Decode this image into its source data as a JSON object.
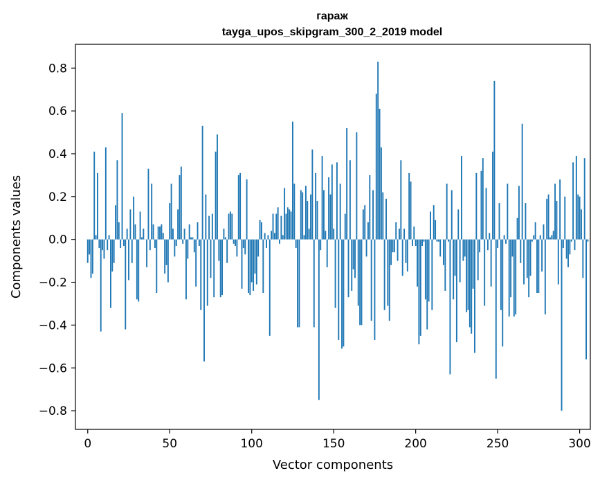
{
  "chart_data": {
    "type": "bar",
    "title": "гараж",
    "subtitle": "tayga_upos_skipgram_300_2_2019 model",
    "xlabel": "Vector components",
    "ylabel": "Components values",
    "xlim": [
      -7.5,
      306.5
    ],
    "ylim": [
      -0.887,
      0.911
    ],
    "xticks": [
      0,
      50,
      100,
      150,
      200,
      250,
      300
    ],
    "yticks": [
      -0.8,
      -0.6,
      -0.4,
      -0.2,
      0.0,
      0.2,
      0.4,
      0.6,
      0.8
    ],
    "ytick_labels": [
      "−0.8",
      "−0.6",
      "−0.4",
      "−0.2",
      "0.0",
      "0.2",
      "0.4",
      "0.6",
      "0.8"
    ],
    "bar_color": "#1f77b4",
    "values": [
      -0.11,
      -0.07,
      -0.18,
      -0.16,
      0.41,
      0.02,
      0.31,
      -0.04,
      -0.43,
      -0.05,
      -0.09,
      0.43,
      -0.05,
      0.02,
      -0.32,
      -0.15,
      -0.11,
      0.16,
      0.37,
      0.08,
      -0.04,
      0.59,
      -0.03,
      -0.42,
      0.05,
      -0.19,
      0.14,
      -0.11,
      0.2,
      0.07,
      -0.28,
      -0.29,
      0.13,
      0.01,
      0.05,
      0.0,
      -0.13,
      0.33,
      -0.05,
      0.26,
      0.07,
      -0.04,
      -0.25,
      0.06,
      0.06,
      0.07,
      0.03,
      -0.16,
      -0.12,
      -0.2,
      0.17,
      0.26,
      0.05,
      -0.08,
      -0.03,
      0.14,
      0.3,
      0.34,
      -0.02,
      0.05,
      -0.28,
      -0.09,
      0.07,
      0.01,
      0.01,
      -0.06,
      -0.22,
      0.08,
      -0.03,
      -0.33,
      0.53,
      -0.57,
      0.21,
      -0.31,
      0.11,
      -0.18,
      0.12,
      -0.27,
      0.41,
      0.49,
      -0.1,
      -0.27,
      -0.26,
      0.05,
      0.01,
      -0.11,
      0.12,
      0.13,
      0.12,
      -0.02,
      -0.03,
      -0.08,
      0.3,
      0.31,
      -0.23,
      -0.04,
      -0.07,
      0.28,
      -0.25,
      -0.26,
      -0.2,
      -0.24,
      -0.16,
      -0.21,
      -0.08,
      0.09,
      0.08,
      -0.25,
      0.03,
      -0.04,
      0.02,
      -0.45,
      0.04,
      0.12,
      0.03,
      0.12,
      0.15,
      -0.02,
      0.11,
      0.02,
      0.24,
      0.12,
      0.15,
      0.14,
      0.13,
      0.55,
      0.26,
      -0.04,
      -0.41,
      -0.41,
      0.23,
      0.22,
      0.02,
      0.25,
      0.18,
      0.05,
      0.21,
      0.42,
      -0.41,
      0.31,
      0.18,
      -0.75,
      -0.05,
      0.39,
      0.23,
      0.04,
      -0.13,
      0.29,
      0.21,
      0.35,
      0.05,
      -0.32,
      0.36,
      -0.47,
      0.26,
      -0.51,
      -0.5,
      0.12,
      0.52,
      -0.27,
      0.37,
      -0.24,
      -0.14,
      -0.18,
      0.5,
      -0.31,
      -0.4,
      -0.4,
      0.14,
      0.16,
      -0.08,
      0.08,
      0.3,
      -0.38,
      0.23,
      -0.47,
      0.68,
      0.83,
      0.61,
      0.43,
      0.22,
      -0.33,
      0.19,
      -0.31,
      -0.38,
      -0.12,
      -0.06,
      -0.06,
      0.08,
      -0.1,
      0.05,
      0.37,
      -0.17,
      0.05,
      -0.11,
      -0.15,
      0.31,
      0.27,
      -0.03,
      0.06,
      -0.03,
      -0.22,
      -0.49,
      -0.45,
      -0.03,
      -0.01,
      -0.28,
      -0.42,
      -0.29,
      0.13,
      -0.33,
      0.16,
      0.09,
      -0.01,
      -0.01,
      -0.08,
      0.0,
      -0.12,
      -0.24,
      0.26,
      -0.01,
      -0.63,
      0.23,
      -0.28,
      -0.17,
      -0.48,
      0.14,
      -0.2,
      0.39,
      -0.1,
      -0.08,
      -0.34,
      -0.33,
      -0.41,
      -0.44,
      -0.23,
      -0.53,
      0.31,
      -0.19,
      -0.06,
      0.32,
      0.38,
      -0.31,
      0.24,
      -0.05,
      0.03,
      -0.22,
      0.41,
      0.74,
      -0.65,
      -0.04,
      0.17,
      -0.33,
      -0.5,
      0.02,
      -0.02,
      0.26,
      -0.36,
      -0.27,
      -0.08,
      -0.36,
      -0.35,
      0.1,
      0.25,
      -0.11,
      0.54,
      -0.21,
      0.17,
      -0.18,
      -0.27,
      -0.17,
      -0.01,
      0.02,
      0.08,
      -0.25,
      -0.25,
      0.02,
      -0.15,
      0.07,
      -0.35,
      0.19,
      0.21,
      0.01,
      0.02,
      0.04,
      0.26,
      0.18,
      -0.21,
      0.28,
      -0.8,
      -0.04,
      0.2,
      -0.09,
      -0.13,
      -0.07,
      -0.01,
      0.36,
      -0.05,
      0.39,
      0.21,
      0.2,
      0.14,
      -0.18,
      0.38,
      -0.56,
      -0.01
    ]
  }
}
